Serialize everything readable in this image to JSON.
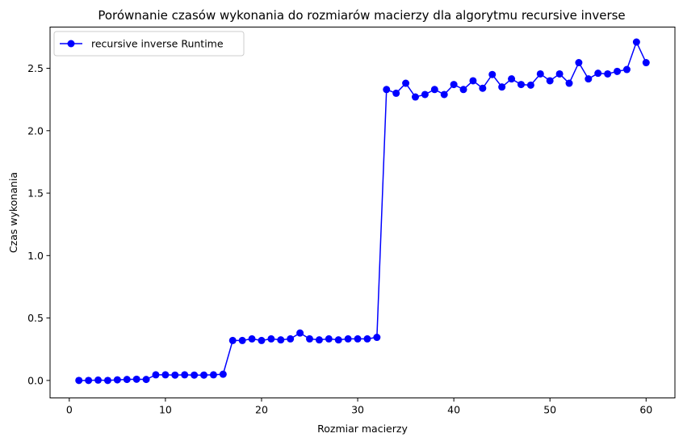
{
  "chart_data": {
    "type": "line",
    "title": "Porównanie czasów wykonania do rozmiarów macierzy dla algorytmu recursive inverse",
    "xlabel": "Rozmiar macierzy",
    "ylabel": "Czas wykonania",
    "xlim": [
      -2,
      63
    ],
    "ylim": [
      -0.14,
      2.83
    ],
    "xticks": [
      0,
      10,
      20,
      30,
      40,
      50,
      60
    ],
    "yticks": [
      0.0,
      0.5,
      1.0,
      1.5,
      2.0,
      2.5
    ],
    "xtick_labels": [
      "0",
      "10",
      "20",
      "30",
      "40",
      "50",
      "60"
    ],
    "ytick_labels": [
      "0.0",
      "0.5",
      "1.0",
      "1.5",
      "2.0",
      "2.5"
    ],
    "grid": false,
    "legend_position": "top-left",
    "series": [
      {
        "name": "recursive inverse Runtime",
        "color": "#0000ff",
        "marker": "circle",
        "x": [
          1,
          2,
          3,
          4,
          5,
          6,
          7,
          8,
          9,
          10,
          11,
          12,
          13,
          14,
          15,
          16,
          17,
          18,
          19,
          20,
          21,
          22,
          23,
          24,
          25,
          26,
          27,
          28,
          29,
          30,
          31,
          32,
          33,
          34,
          35,
          36,
          37,
          38,
          39,
          40,
          41,
          42,
          43,
          44,
          45,
          46,
          47,
          48,
          49,
          50,
          51,
          52,
          53,
          54,
          55,
          56,
          57,
          58,
          59,
          60
        ],
        "values": [
          0.0,
          0.0,
          0.003,
          0.0,
          0.005,
          0.008,
          0.01,
          0.008,
          0.045,
          0.045,
          0.043,
          0.045,
          0.043,
          0.043,
          0.045,
          0.05,
          0.32,
          0.32,
          0.333,
          0.32,
          0.333,
          0.325,
          0.333,
          0.38,
          0.333,
          0.325,
          0.333,
          0.325,
          0.333,
          0.333,
          0.333,
          0.345,
          2.33,
          2.3,
          2.38,
          2.27,
          2.29,
          2.33,
          2.29,
          2.37,
          2.33,
          2.4,
          2.34,
          2.45,
          2.35,
          2.415,
          2.37,
          2.365,
          2.455,
          2.4,
          2.455,
          2.38,
          2.545,
          2.415,
          2.46,
          2.455,
          2.475,
          2.49,
          2.71,
          2.545
        ]
      }
    ]
  }
}
